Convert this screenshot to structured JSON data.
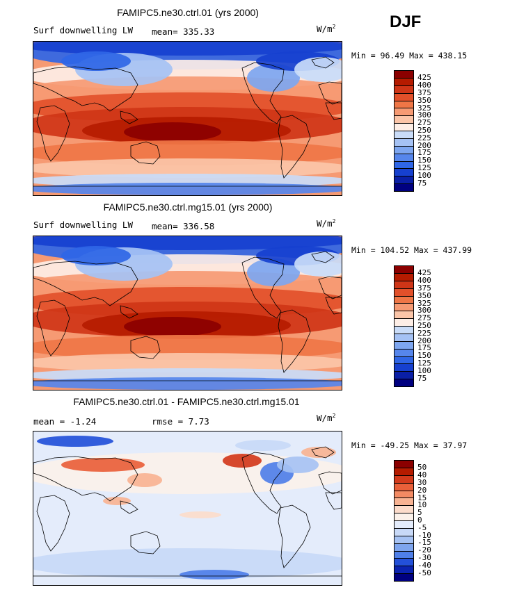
{
  "season": "DJF",
  "panels": [
    {
      "title": "FAMIPC5.ne30.ctrl.01 (yrs 2000)",
      "left_label": "Surf downwelling LW",
      "mean_label": "mean= 335.33",
      "units": "W/m",
      "units_sup": "2",
      "minmax": "Min =  96.49 Max = 438.15",
      "type": "field",
      "levels": [
        "425",
        "400",
        "375",
        "350",
        "325",
        "300",
        "275",
        "250",
        "225",
        "200",
        "175",
        "150",
        "125",
        "100",
        "75"
      ],
      "colors": [
        "#8b0000",
        "#b51b00",
        "#cf3517",
        "#e2502a",
        "#ef7646",
        "#f69a73",
        "#fbc5a8",
        "#fdeee6",
        "#c9dcf8",
        "#a5c2f4",
        "#7da6f0",
        "#5686ec",
        "#2f66e6",
        "#1640cf",
        "#0a1fa6",
        "#000080"
      ]
    },
    {
      "title": "FAMIPC5.ne30.ctrl.mg15.01 (yrs 2000)",
      "left_label": "Surf downwelling LW",
      "mean_label": "mean= 336.58",
      "units": "W/m",
      "units_sup": "2",
      "minmax": "Min = 104.52 Max = 437.99",
      "type": "field",
      "levels": [
        "425",
        "400",
        "375",
        "350",
        "325",
        "300",
        "275",
        "250",
        "225",
        "200",
        "175",
        "150",
        "125",
        "100",
        "75"
      ],
      "colors": [
        "#8b0000",
        "#b51b00",
        "#cf3517",
        "#e2502a",
        "#ef7646",
        "#f69a73",
        "#fbc5a8",
        "#fdeee6",
        "#c9dcf8",
        "#a5c2f4",
        "#7da6f0",
        "#5686ec",
        "#2f66e6",
        "#1640cf",
        "#0a1fa6",
        "#000080"
      ]
    },
    {
      "title": "FAMIPC5.ne30.ctrl.01 - FAMIPC5.ne30.ctrl.mg15.01",
      "left_label": "mean =  -1.24",
      "mean_label": "rmse =   7.73",
      "units": "W/m",
      "units_sup": "2",
      "minmax": "Min = -49.25 Max =  37.97",
      "type": "diff",
      "levels": [
        "50",
        "40",
        "30",
        "20",
        "15",
        "10",
        "5",
        "0",
        "-5",
        "-10",
        "-15",
        "-20",
        "-30",
        "-40",
        "-50"
      ],
      "colors": [
        "#8b0000",
        "#b51b00",
        "#d33a1c",
        "#e9603a",
        "#f38a63",
        "#f8b393",
        "#fcdccb",
        "#fbf1ea",
        "#e4ecfb",
        "#c8d9f7",
        "#a6c2f3",
        "#7ea5ee",
        "#4f7fe8",
        "#2350d9",
        "#0b23b0",
        "#000080"
      ]
    }
  ]
}
